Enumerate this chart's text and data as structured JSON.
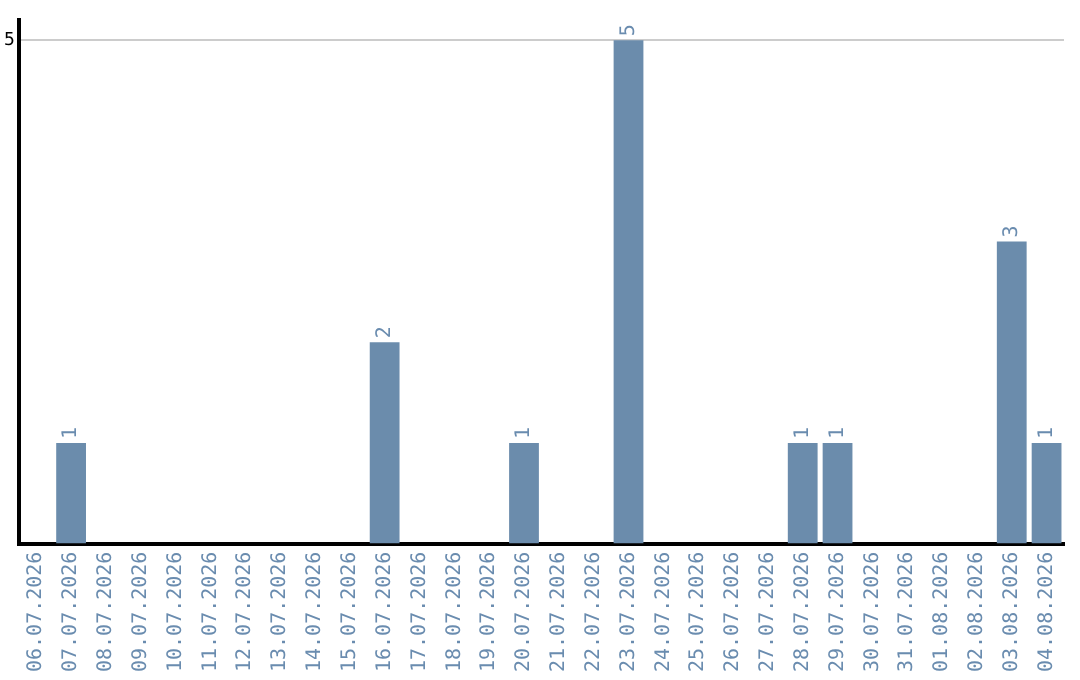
{
  "chart_data": {
    "type": "bar",
    "categories": [
      "06.07.2026",
      "07.07.2026",
      "08.07.2026",
      "09.07.2026",
      "10.07.2026",
      "11.07.2026",
      "12.07.2026",
      "13.07.2026",
      "14.07.2026",
      "15.07.2026",
      "16.07.2026",
      "17.07.2026",
      "18.07.2026",
      "19.07.2026",
      "20.07.2026",
      "21.07.2026",
      "22.07.2026",
      "23.07.2026",
      "24.07.2026",
      "25.07.2026",
      "26.07.2026",
      "27.07.2026",
      "28.07.2026",
      "29.07.2026",
      "30.07.2026",
      "31.07.2026",
      "01.08.2026",
      "02.08.2026",
      "03.08.2026",
      "04.08.2026"
    ],
    "values": [
      0,
      1,
      0,
      0,
      0,
      0,
      0,
      0,
      0,
      0,
      2,
      0,
      0,
      0,
      1,
      0,
      0,
      5,
      0,
      0,
      0,
      0,
      1,
      1,
      0,
      0,
      0,
      0,
      3,
      1
    ],
    "value_labels": [
      null,
      "1",
      null,
      null,
      null,
      null,
      null,
      null,
      null,
      null,
      "2",
      null,
      null,
      null,
      "1",
      null,
      null,
      "5",
      null,
      null,
      null,
      null,
      "1",
      "1",
      null,
      null,
      null,
      null,
      "3",
      "1"
    ],
    "color": "#6b8cac",
    "ylim": [
      0,
      5.2
    ],
    "yticks": [
      5
    ],
    "grid": "y",
    "legend": false
  }
}
